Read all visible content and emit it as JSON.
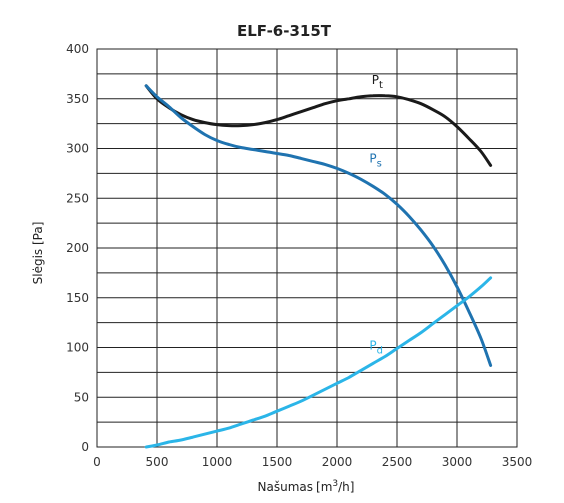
{
  "chart_data": {
    "type": "line",
    "title": "ELF-6-315T",
    "xlabel": "Našumas",
    "xunit_prefix": "[m",
    "xunit_sup": "3",
    "xunit_suffix": "/h]",
    "ylabel": "Slėgis [Pa]",
    "xlim": [
      0,
      3500
    ],
    "ylim": [
      0,
      400
    ],
    "xticks": [
      0,
      500,
      1000,
      1500,
      2000,
      2500,
      3000,
      3500
    ],
    "yticks": [
      0,
      50,
      100,
      150,
      200,
      250,
      300,
      350,
      400
    ],
    "grid": true,
    "series": [
      {
        "name": "Pt",
        "name_main": "P",
        "name_sub": "t",
        "color": "#1a1a1a",
        "x": [
          410,
          500,
          600,
          700,
          800,
          900,
          1000,
          1100,
          1200,
          1300,
          1400,
          1500,
          1600,
          1700,
          1800,
          1900,
          2000,
          2100,
          2200,
          2300,
          2400,
          2500,
          2600,
          2700,
          2800,
          2900,
          3000,
          3100,
          3200,
          3280
        ],
        "y": [
          363,
          350,
          341,
          334,
          329,
          326,
          324,
          323,
          323,
          324,
          326,
          329,
          333,
          337,
          341,
          345,
          348,
          350,
          352,
          353,
          353,
          352,
          349,
          345,
          339,
          332,
          322,
          310,
          297,
          283
        ]
      },
      {
        "name": "Ps",
        "name_main": "P",
        "name_sub": "s",
        "color": "#1f73b0",
        "x": [
          410,
          500,
          600,
          700,
          800,
          900,
          1000,
          1100,
          1200,
          1300,
          1400,
          1500,
          1600,
          1700,
          1800,
          1900,
          2000,
          2100,
          2200,
          2300,
          2400,
          2500,
          2600,
          2700,
          2800,
          2900,
          3000,
          3100,
          3200,
          3280
        ],
        "y": [
          363,
          352,
          342,
          331,
          322,
          314,
          308,
          304,
          301,
          299,
          297,
          295,
          293,
          290,
          287,
          284,
          280,
          275,
          269,
          262,
          254,
          244,
          232,
          218,
          202,
          183,
          161,
          136,
          109,
          82
        ]
      },
      {
        "name": "Pd",
        "name_main": "P",
        "name_sub": "d",
        "color": "#2bb5e8",
        "x": [
          410,
          500,
          600,
          700,
          800,
          900,
          1000,
          1100,
          1200,
          1300,
          1400,
          1500,
          1600,
          1700,
          1800,
          1900,
          2000,
          2100,
          2200,
          2300,
          2400,
          2500,
          2600,
          2700,
          2800,
          2900,
          3000,
          3100,
          3200,
          3280
        ],
        "y": [
          0,
          2,
          5,
          7,
          10,
          13,
          16,
          19,
          23,
          27,
          31,
          36,
          41,
          46,
          52,
          58,
          64,
          70,
          77,
          84,
          91,
          99,
          107,
          115,
          124,
          133,
          142,
          151,
          161,
          170
        ]
      }
    ],
    "series_label_positions": {
      "Pt": [
        2290,
        365
      ],
      "Ps": [
        2270,
        286
      ],
      "Pd": [
        2270,
        98
      ]
    }
  }
}
